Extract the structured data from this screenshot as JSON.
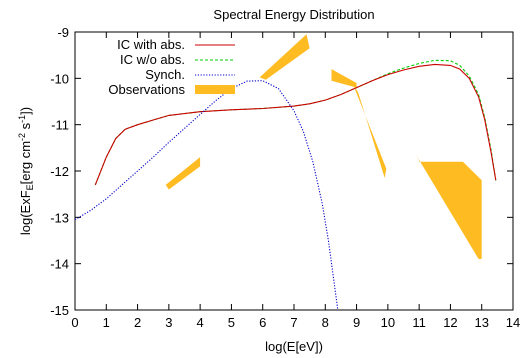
{
  "chart_data": {
    "type": "line",
    "title": "Spectral Energy Distribution",
    "xlabel": "log(E[eV])",
    "ylabel": {
      "prefix": "log(ExF",
      "sub": "E",
      "mid1": "[erg cm",
      "sup1": "-2",
      "mid2": " s",
      "sup2": "-1",
      "suffix": "])"
    },
    "xlim": [
      0,
      14
    ],
    "ylim": [
      -15,
      -9
    ],
    "xticks": [
      "0",
      "1",
      "2",
      "3",
      "4",
      "5",
      "6",
      "7",
      "8",
      "9",
      "10",
      "11",
      "12",
      "13",
      "14"
    ],
    "yticks": [
      "-9",
      "-10",
      "-11",
      "-12",
      "-13",
      "-14",
      "-15"
    ],
    "grid": false,
    "legend_position": "top-left",
    "series": [
      {
        "name": "IC with abs.",
        "color": "#cc0000",
        "style": "solid",
        "x": [
          0.65,
          1.0,
          1.3,
          1.6,
          2.0,
          2.5,
          3.0,
          4.0,
          5.0,
          6.0,
          7.0,
          7.5,
          8.0,
          8.5,
          9.0,
          9.5,
          10.0,
          10.5,
          11.0,
          11.5,
          12.0,
          12.3,
          12.6,
          12.9,
          13.1,
          13.3,
          13.45
        ],
        "y": [
          -12.3,
          -11.7,
          -11.3,
          -11.1,
          -11.0,
          -10.9,
          -10.8,
          -10.72,
          -10.68,
          -10.65,
          -10.6,
          -10.55,
          -10.47,
          -10.35,
          -10.2,
          -10.05,
          -9.92,
          -9.82,
          -9.74,
          -9.7,
          -9.72,
          -9.8,
          -10.0,
          -10.4,
          -10.9,
          -11.6,
          -12.2
        ]
      },
      {
        "name": "IC w/o abs.",
        "color": "#00cc00",
        "style": "dashed",
        "x": [
          0.65,
          1.0,
          1.3,
          1.6,
          2.0,
          2.5,
          3.0,
          4.0,
          5.0,
          6.0,
          7.0,
          7.5,
          8.0,
          8.5,
          9.0,
          9.5,
          10.0,
          10.5,
          11.0,
          11.5,
          12.0,
          12.3,
          12.6,
          12.9,
          13.1,
          13.3,
          13.45
        ],
        "y": [
          -12.3,
          -11.7,
          -11.3,
          -11.1,
          -11.0,
          -10.9,
          -10.8,
          -10.72,
          -10.68,
          -10.65,
          -10.6,
          -10.55,
          -10.47,
          -10.35,
          -10.2,
          -10.05,
          -9.9,
          -9.78,
          -9.68,
          -9.61,
          -9.62,
          -9.72,
          -9.95,
          -10.35,
          -10.85,
          -11.55,
          -12.2
        ]
      },
      {
        "name": "Synch.",
        "color": "#0000cc",
        "style": "dotted",
        "x": [
          0.0,
          0.5,
          1.0,
          1.5,
          2.0,
          2.5,
          3.0,
          3.5,
          4.0,
          4.5,
          5.0,
          5.5,
          6.0,
          6.5,
          7.0,
          7.3,
          7.6,
          7.9,
          8.1,
          8.3,
          8.4
        ],
        "y": [
          -13.05,
          -12.85,
          -12.6,
          -12.3,
          -12.0,
          -11.7,
          -11.38,
          -11.08,
          -10.78,
          -10.48,
          -10.22,
          -10.06,
          -10.05,
          -10.22,
          -10.7,
          -11.15,
          -11.8,
          -12.7,
          -13.5,
          -14.5,
          -15.0
        ]
      }
    ],
    "observations": {
      "name": "Observations",
      "color": "#ffbb22",
      "polygons": [
        [
          [
            2.9,
            -12.3
          ],
          [
            3.0,
            -12.4
          ],
          [
            4.0,
            -11.9
          ],
          [
            4.0,
            -11.7
          ]
        ],
        [
          [
            5.9,
            -9.98
          ],
          [
            6.1,
            -10.03
          ],
          [
            7.5,
            -9.35
          ],
          [
            7.4,
            -9.05
          ]
        ],
        [
          [
            8.2,
            -9.8
          ],
          [
            8.2,
            -10.05
          ],
          [
            9.0,
            -10.2
          ],
          [
            9.0,
            -10.1
          ]
        ],
        [
          [
            8.9,
            -10.15
          ],
          [
            9.05,
            -10.3
          ],
          [
            9.9,
            -12.15
          ],
          [
            9.95,
            -11.95
          ]
        ],
        [
          [
            10.9,
            -11.65
          ],
          [
            11.0,
            -11.75
          ],
          [
            11.0,
            -11.8
          ],
          [
            12.4,
            -11.8
          ],
          [
            13.0,
            -12.2
          ],
          [
            13.0,
            -13.9
          ],
          [
            12.9,
            -13.9
          ]
        ]
      ]
    }
  }
}
